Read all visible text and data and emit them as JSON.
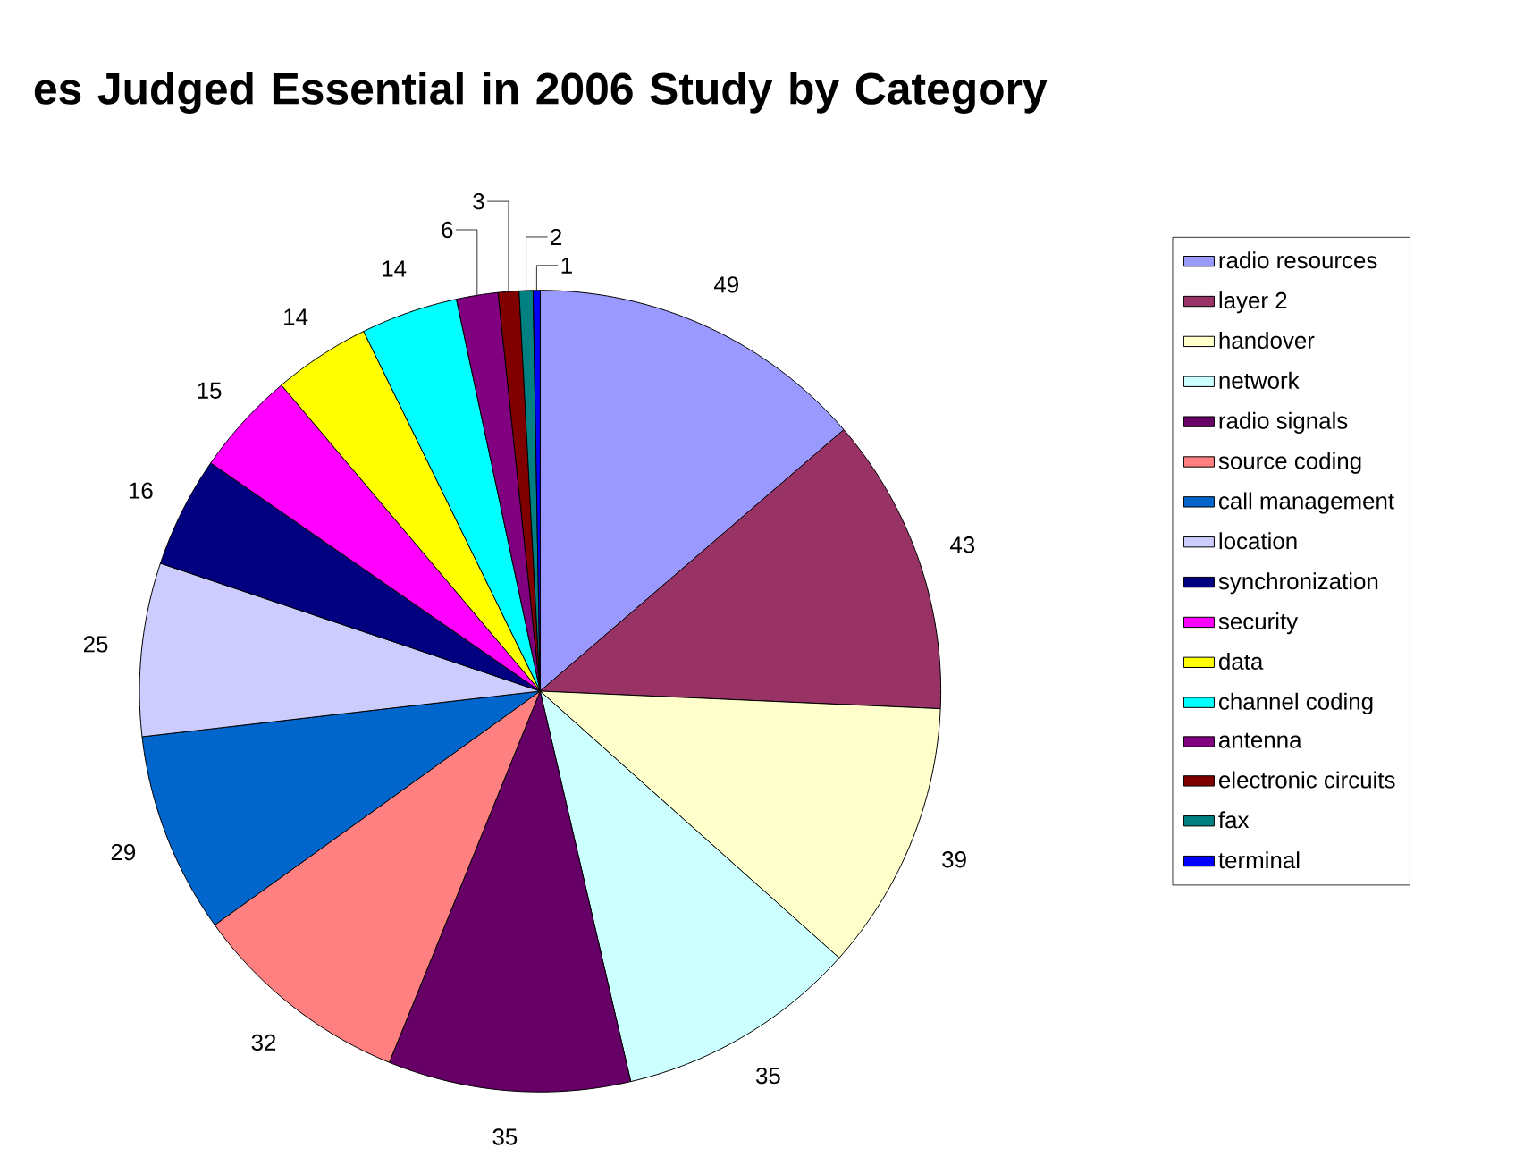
{
  "chart_data": {
    "type": "pie",
    "title": "es Judged Essential in 2006 Study by Category",
    "categories": [
      "radio resources",
      "layer 2",
      "handover",
      "network",
      "radio signals",
      "source coding",
      "call management",
      "location",
      "synchronization",
      "security",
      "data",
      "channel coding",
      "antenna",
      "electronic circuits",
      "fax",
      "terminal"
    ],
    "values": [
      49,
      43,
      39,
      35,
      35,
      32,
      29,
      25,
      16,
      15,
      14,
      14,
      6,
      3,
      2,
      1
    ],
    "colors": [
      "#9999ff",
      "#993366",
      "#ffffcc",
      "#ccffff",
      "#660066",
      "#ff8080",
      "#0066cc",
      "#ccccff",
      "#000080",
      "#ff00ff",
      "#ffff00",
      "#00ffff",
      "#800080",
      "#800000",
      "#008080",
      "#0000ff"
    ],
    "data_labels": true,
    "legend": "right"
  }
}
